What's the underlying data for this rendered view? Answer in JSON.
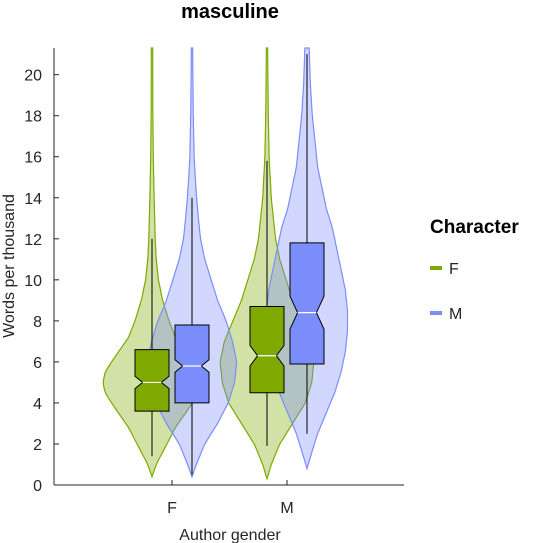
{
  "chart_data": {
    "type": "violin",
    "title": "masculine",
    "xlabel": "Author gender",
    "ylabel": "Words per thousand",
    "categories": [
      "F",
      "M"
    ],
    "ylim": [
      0,
      21.3
    ],
    "yticks": [
      0,
      2,
      4,
      6,
      8,
      10,
      12,
      14,
      16,
      18,
      20
    ],
    "grid": false,
    "legend": {
      "title": "Character",
      "placement": "right"
    },
    "series": [
      {
        "name": "F",
        "color": "#7fa800",
        "boxes": [
          {
            "category": "F",
            "q1": 3.6,
            "median": 5.0,
            "q3": 6.6,
            "notch_low": 4.7,
            "notch_high": 5.3,
            "whisker_low": 1.4,
            "whisker_high": 12.0,
            "density": [
              [
                0.4,
                0
              ],
              [
                1.0,
                2
              ],
              [
                1.6,
                5
              ],
              [
                2.2,
                8
              ],
              [
                2.8,
                11
              ],
              [
                3.4,
                15
              ],
              [
                4.0,
                19
              ],
              [
                4.5,
                22
              ],
              [
                5.0,
                23
              ],
              [
                5.5,
                22
              ],
              [
                6.0,
                19
              ],
              [
                6.6,
                15
              ],
              [
                7.2,
                11
              ],
              [
                8.0,
                8
              ],
              [
                9.0,
                5
              ],
              [
                10.0,
                3
              ],
              [
                11.0,
                2
              ],
              [
                12.0,
                1.5
              ],
              [
                14.0,
                1
              ],
              [
                16.0,
                0.6
              ],
              [
                18.0,
                0.4
              ],
              [
                21.3,
                0.3
              ]
            ]
          },
          {
            "category": "M",
            "q1": 4.5,
            "median": 6.3,
            "q3": 8.7,
            "notch_low": 5.8,
            "notch_high": 6.8,
            "whisker_low": 1.9,
            "whisker_high": 15.8,
            "density": [
              [
                0.3,
                0
              ],
              [
                1.0,
                2
              ],
              [
                2.0,
                6
              ],
              [
                3.0,
                12
              ],
              [
                4.0,
                18
              ],
              [
                5.0,
                21
              ],
              [
                6.0,
                22
              ],
              [
                7.0,
                20
              ],
              [
                8.0,
                16
              ],
              [
                9.0,
                12
              ],
              [
                10.0,
                9
              ],
              [
                11.0,
                6
              ],
              [
                12.0,
                4
              ],
              [
                13.0,
                3
              ],
              [
                14.0,
                2
              ],
              [
                15.0,
                1.5
              ],
              [
                16.0,
                1
              ],
              [
                18.0,
                0.6
              ],
              [
                20.0,
                0.4
              ],
              [
                21.3,
                0.3
              ]
            ]
          }
        ]
      },
      {
        "name": "M",
        "color": "#7b8dfb",
        "boxes": [
          {
            "category": "F",
            "q1": 4.0,
            "median": 5.8,
            "q3": 7.8,
            "notch_low": 5.5,
            "notch_high": 6.1,
            "whisker_low": 0.5,
            "whisker_high": 14.0,
            "density": [
              [
                0.4,
                0
              ],
              [
                1.0,
                2
              ],
              [
                2.0,
                6
              ],
              [
                3.0,
                12
              ],
              [
                4.0,
                17
              ],
              [
                5.0,
                20
              ],
              [
                6.0,
                21
              ],
              [
                7.0,
                19
              ],
              [
                8.0,
                16
              ],
              [
                9.0,
                12
              ],
              [
                10.0,
                9
              ],
              [
                11.0,
                6
              ],
              [
                12.0,
                4
              ],
              [
                13.0,
                3
              ],
              [
                14.0,
                2.2
              ],
              [
                15.0,
                1.5
              ],
              [
                16.0,
                1
              ],
              [
                18.0,
                0.6
              ],
              [
                20.0,
                0.4
              ],
              [
                21.3,
                0.3
              ]
            ]
          },
          {
            "category": "M",
            "q1": 5.9,
            "median": 8.4,
            "q3": 11.8,
            "notch_low": 7.6,
            "notch_high": 9.2,
            "whisker_low": 2.5,
            "whisker_high": 21.0,
            "density": [
              [
                0.8,
                0
              ],
              [
                1.5,
                2
              ],
              [
                2.5,
                5
              ],
              [
                3.5,
                9
              ],
              [
                4.5,
                13
              ],
              [
                5.5,
                16
              ],
              [
                6.5,
                18
              ],
              [
                7.5,
                19
              ],
              [
                8.5,
                19
              ],
              [
                9.5,
                18
              ],
              [
                10.5,
                16
              ],
              [
                11.5,
                14
              ],
              [
                12.5,
                12
              ],
              [
                13.5,
                9
              ],
              [
                14.5,
                7
              ],
              [
                15.5,
                5
              ],
              [
                16.5,
                4
              ],
              [
                18.0,
                2.5
              ],
              [
                19.5,
                1.6
              ],
              [
                21.3,
                1
              ]
            ]
          }
        ]
      }
    ]
  }
}
